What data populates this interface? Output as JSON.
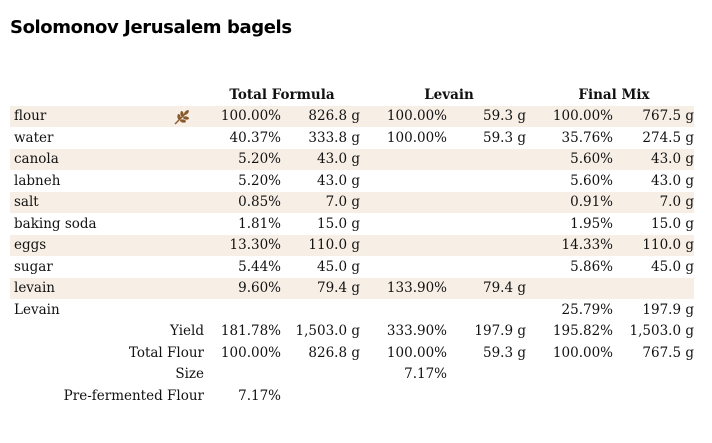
{
  "title": "Solomonov Jerusalem bagels",
  "headers": {
    "total_formula": "Total Formula",
    "levain": "Levain",
    "final_mix": "Final Mix"
  },
  "flour_icon": "wheat-icon",
  "colors": {
    "row_shade": "#f7efe6",
    "icon": "#8a5a2b"
  },
  "ingredients": [
    {
      "name": "flour",
      "tf_pct": "100.00%",
      "tf_wt": "826.8 g",
      "lv_pct": "100.00%",
      "lv_wt": "59.3 g",
      "fm_pct": "100.00%",
      "fm_wt": "767.5 g"
    },
    {
      "name": "water",
      "tf_pct": "40.37%",
      "tf_wt": "333.8 g",
      "lv_pct": "100.00%",
      "lv_wt": "59.3 g",
      "fm_pct": "35.76%",
      "fm_wt": "274.5 g"
    },
    {
      "name": "canola",
      "tf_pct": "5.20%",
      "tf_wt": "43.0 g",
      "lv_pct": "",
      "lv_wt": "",
      "fm_pct": "5.60%",
      "fm_wt": "43.0 g"
    },
    {
      "name": "labneh",
      "tf_pct": "5.20%",
      "tf_wt": "43.0 g",
      "lv_pct": "",
      "lv_wt": "",
      "fm_pct": "5.60%",
      "fm_wt": "43.0 g"
    },
    {
      "name": "salt",
      "tf_pct": "0.85%",
      "tf_wt": "7.0 g",
      "lv_pct": "",
      "lv_wt": "",
      "fm_pct": "0.91%",
      "fm_wt": "7.0 g"
    },
    {
      "name": "baking soda",
      "tf_pct": "1.81%",
      "tf_wt": "15.0 g",
      "lv_pct": "",
      "lv_wt": "",
      "fm_pct": "1.95%",
      "fm_wt": "15.0 g"
    },
    {
      "name": "eggs",
      "tf_pct": "13.30%",
      "tf_wt": "110.0 g",
      "lv_pct": "",
      "lv_wt": "",
      "fm_pct": "14.33%",
      "fm_wt": "110.0 g"
    },
    {
      "name": "sugar",
      "tf_pct": "5.44%",
      "tf_wt": "45.0 g",
      "lv_pct": "",
      "lv_wt": "",
      "fm_pct": "5.86%",
      "fm_wt": "45.0 g"
    },
    {
      "name": "levain",
      "tf_pct": "9.60%",
      "tf_wt": "79.4 g",
      "lv_pct": "133.90%",
      "lv_wt": "79.4 g",
      "fm_pct": "",
      "fm_wt": ""
    },
    {
      "name": "Levain",
      "tf_pct": "",
      "tf_wt": "",
      "lv_pct": "",
      "lv_wt": "",
      "fm_pct": "25.79%",
      "fm_wt": "197.9 g"
    }
  ],
  "summary": [
    {
      "label": "Yield",
      "tf_pct": "181.78%",
      "tf_wt": "1,503.0 g",
      "lv_pct": "333.90%",
      "lv_wt": "197.9 g",
      "fm_pct": "195.82%",
      "fm_wt": "1,503.0 g"
    },
    {
      "label": "Total Flour",
      "tf_pct": "100.00%",
      "tf_wt": "826.8 g",
      "lv_pct": "100.00%",
      "lv_wt": "59.3 g",
      "fm_pct": "100.00%",
      "fm_wt": "767.5 g"
    },
    {
      "label": "Size",
      "tf_pct": "",
      "tf_wt": "",
      "lv_pct": "7.17%",
      "lv_wt": "",
      "fm_pct": "",
      "fm_wt": ""
    },
    {
      "label": "Pre-fermented Flour",
      "tf_pct": "7.17%",
      "tf_wt": "",
      "lv_pct": "",
      "lv_wt": "",
      "fm_pct": "",
      "fm_wt": ""
    }
  ]
}
